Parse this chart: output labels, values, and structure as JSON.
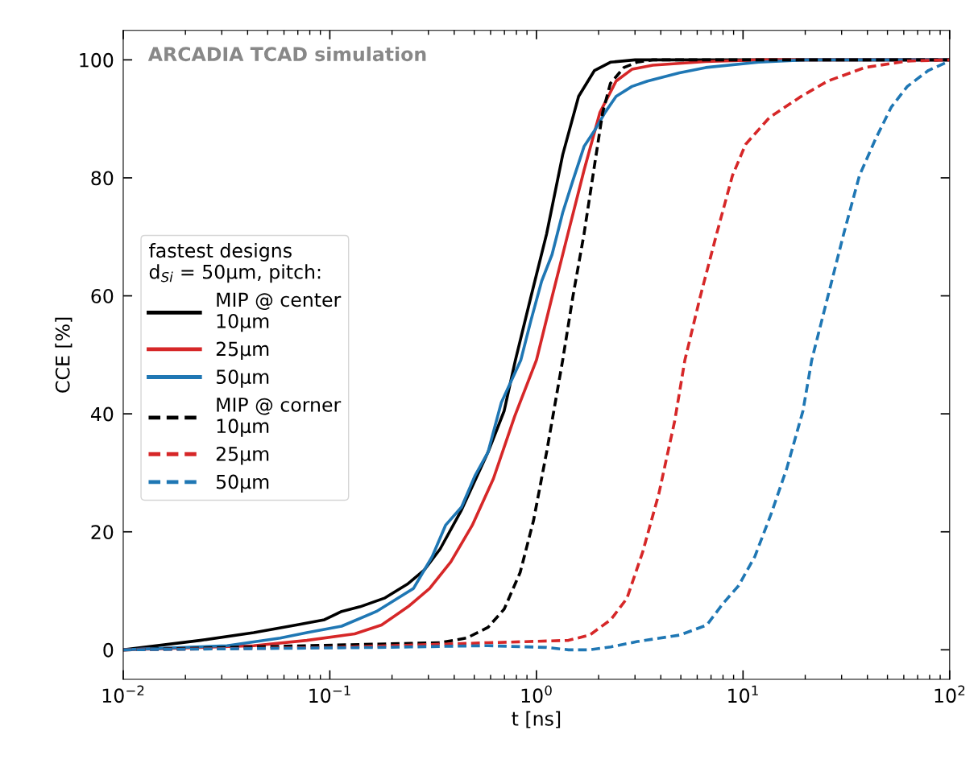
{
  "chart_data": {
    "type": "line",
    "xlabel": "t [ns]",
    "ylabel": "CCE [%]",
    "annotations": [
      "ARCADIA TCAD simulation"
    ],
    "log": "x",
    "xlim": [
      0.01,
      100
    ],
    "ylim": [
      -5,
      105
    ],
    "xticks": [
      {
        "value": 0.01,
        "label": "10$^{−2}$"
      },
      {
        "value": 0.1,
        "label": "10$^{−1}$"
      },
      {
        "value": 1,
        "label": "10$^{0}$"
      },
      {
        "value": 10,
        "label": "10$^{1}$"
      },
      {
        "value": 100,
        "label": "10$^{2}$"
      }
    ],
    "yticks": [
      0,
      20,
      40,
      60,
      80,
      100
    ],
    "grid": false,
    "legend": "left",
    "legend_title": "fastest designs\nd$_{Si}$ = 50μm, pitch:",
    "series": [
      {
        "name": "MIP @ center\n10μm",
        "color": "#000000",
        "line_style": "solid",
        "x": [
          0.01,
          0.0236,
          0.0428,
          0.0688,
          0.0942,
          0.114,
          0.14,
          0.185,
          0.239,
          0.286,
          0.342,
          0.434,
          0.583,
          0.698,
          0.79,
          0.94,
          1.12,
          1.34,
          1.6,
          1.91,
          2.28,
          3.0,
          100
        ],
        "values": [
          0,
          1.6,
          2.9,
          4.2,
          5.1,
          6.5,
          7.3,
          8.8,
          11.2,
          13.5,
          17.1,
          23.7,
          33.5,
          40.5,
          49,
          59.8,
          70.5,
          83.9,
          93.8,
          98.2,
          99.6,
          100,
          100
        ]
      },
      {
        "name": "25μm",
        "color": "#d62728",
        "line_style": "solid",
        "x": [
          0.01,
          0.0428,
          0.0774,
          0.132,
          0.178,
          0.239,
          0.304,
          0.385,
          0.489,
          0.619,
          0.785,
          1.0,
          1.19,
          1.42,
          1.7,
          2.03,
          2.43,
          2.9,
          3.66,
          6.6,
          12,
          100
        ],
        "values": [
          0,
          0.7,
          1.6,
          2.7,
          4.2,
          7.3,
          10.4,
          14.9,
          21.1,
          29,
          39.6,
          49.1,
          59.8,
          70.5,
          81.3,
          91.1,
          96.4,
          98.4,
          99.1,
          99.7,
          100,
          100
        ]
      },
      {
        "name": "50μm",
        "color": "#1f77b4",
        "line_style": "solid",
        "x": [
          0.01,
          0.0318,
          0.0575,
          0.0774,
          0.114,
          0.168,
          0.254,
          0.313,
          0.363,
          0.434,
          0.504,
          0.583,
          0.676,
          0.84,
          0.94,
          1.06,
          1.19,
          1.34,
          1.5,
          1.7,
          1.91,
          2.15,
          2.43,
          2.9,
          3.45,
          4.92,
          6.6,
          11.9,
          20,
          100
        ],
        "values": [
          0,
          0.7,
          2.0,
          2.9,
          4.0,
          6.5,
          10.4,
          15.8,
          21.1,
          24.2,
          29.5,
          33.5,
          41.9,
          49.1,
          55.8,
          62.5,
          67,
          74.1,
          79.5,
          85.3,
          88,
          91.1,
          93.8,
          95.5,
          96.4,
          97.8,
          98.7,
          99.6,
          100,
          100
        ]
      },
      {
        "name": "MIP @ corner\n10μm",
        "color": "#000000",
        "line_style": "dashed",
        "x": [
          0.01,
          0.342,
          0.46,
          0.583,
          0.698,
          0.834,
          0.968,
          1.12,
          1.34,
          1.5,
          1.7,
          1.91,
          2.09,
          2.28,
          2.65,
          3.07,
          3.66,
          100
        ],
        "values": [
          0,
          1.2,
          2.0,
          3.8,
          6.9,
          13.1,
          21.9,
          33.5,
          49.1,
          59.8,
          70.5,
          82.1,
          91,
          96,
          98.7,
          99.6,
          100,
          100
        ]
      },
      {
        "name": "25μm",
        "color": "#d62728",
        "line_style": "dashed",
        "x": [
          0.01,
          0.104,
          0.583,
          1.43,
          1.81,
          2.29,
          2.74,
          3.27,
          3.91,
          4.67,
          5.23,
          6.2,
          7.45,
          8.89,
          10.3,
          13.4,
          19.1,
          25.7,
          38.9,
          62.4,
          100
        ],
        "values": [
          0,
          0.4,
          1.2,
          1.6,
          2.5,
          5.1,
          8.7,
          16.6,
          26.4,
          38.8,
          49.1,
          59.8,
          70.5,
          80.4,
          85.7,
          90.2,
          93.8,
          96.4,
          98.7,
          99.8,
          100
        ]
      },
      {
        "name": "50μm",
        "color": "#1f77b4",
        "line_style": "dashed",
        "x": [
          0.01,
          0.168,
          0.583,
          1.12,
          1.43,
          1.81,
          2.29,
          3.08,
          4.95,
          6.68,
          7.98,
          9.53,
          11.4,
          13.6,
          16.3,
          19.5,
          21.5,
          25.7,
          30.7,
          36.6,
          43.8,
          52.2,
          62.4,
          78.9,
          97
        ],
        "values": [
          0,
          0.4,
          0.7,
          0.4,
          0,
          0,
          0.5,
          1.4,
          2.5,
          4.2,
          7.8,
          10.9,
          15.8,
          22.8,
          30.8,
          40.5,
          49.1,
          59.8,
          70.5,
          80.4,
          86.6,
          92,
          95.5,
          98.2,
          99.6
        ]
      }
    ]
  }
}
